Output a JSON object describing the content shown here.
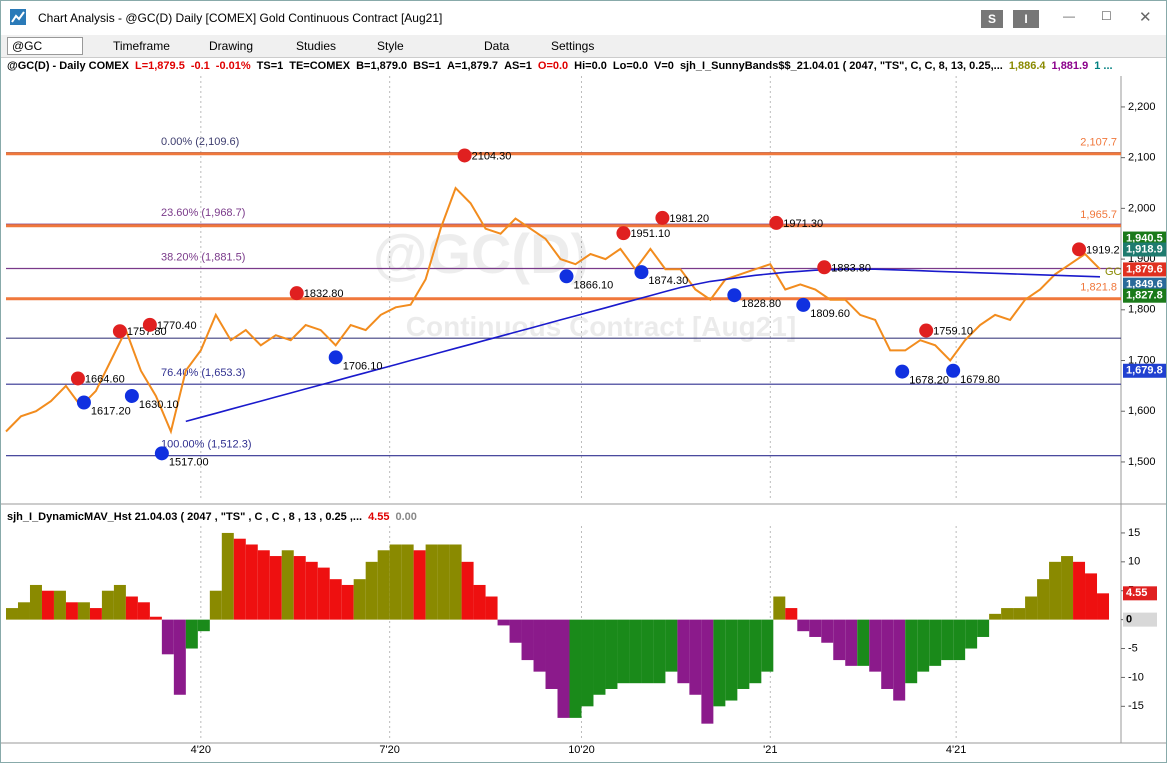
{
  "window": {
    "title": "Chart Analysis - @GC(D) Daily [COMEX] Gold Continuous Contract [Aug21]",
    "buttons": [
      "S",
      "I"
    ]
  },
  "toolbar": {
    "symbol": "@GC",
    "items": [
      "Timeframe",
      "Drawing",
      "Studies",
      "Style",
      "Data",
      "Settings"
    ]
  },
  "chart_data": [
    {
      "type": "line",
      "header": [
        {
          "text": "@GC(D) - Daily  COMEX",
          "color": "#000000"
        },
        {
          "text": "L=1,879.5",
          "color": "#e00000"
        },
        {
          "text": "-0.1",
          "color": "#e00000"
        },
        {
          "text": "-0.01%",
          "color": "#e00000"
        },
        {
          "text": "TS=1",
          "color": "#000000"
        },
        {
          "text": "TE=COMEX",
          "color": "#000000"
        },
        {
          "text": "B=1,879.0",
          "color": "#000000"
        },
        {
          "text": "BS=1",
          "color": "#000000"
        },
        {
          "text": "A=1,879.7",
          "color": "#000000"
        },
        {
          "text": "AS=1",
          "color": "#000000"
        },
        {
          "text": "O=0.0",
          "color": "#e00000"
        },
        {
          "text": "Hi=0.0",
          "color": "#000000"
        },
        {
          "text": "Lo=0.0",
          "color": "#000000"
        },
        {
          "text": "V=0",
          "color": "#000000"
        },
        {
          "text": "sjh_I_SunnyBands$$_21.04.01 ( 2047, \"TS\", C, C, 8, 13, 0.25,...",
          "color": "#000000"
        },
        {
          "text": "1,886.4",
          "color": "#8a8a00"
        },
        {
          "text": "1,881.9",
          "color": "#8b008b"
        },
        {
          "text": "1 ...",
          "color": "#008080"
        }
      ],
      "watermark": [
        "@GC(D)",
        "Continuous Contract [Aug21]"
      ],
      "symbol_tag": "GC",
      "xlim": [
        0,
        372
      ],
      "xticks": [
        {
          "value": 65,
          "label": "4'20"
        },
        {
          "value": 128,
          "label": "7'20"
        },
        {
          "value": 192,
          "label": "10'20"
        },
        {
          "value": 255,
          "label": "'21"
        },
        {
          "value": 317,
          "label": "4'21"
        }
      ],
      "ylim": [
        1423,
        2261
      ],
      "yticks": [
        {
          "value": 1500,
          "label": "1,500"
        },
        {
          "value": 1600,
          "label": "1,600"
        },
        {
          "value": 1700,
          "label": "1,700"
        },
        {
          "value": 1800,
          "label": "1,800"
        },
        {
          "value": 1900,
          "label": "1,900"
        },
        {
          "value": 2000,
          "label": "2,000"
        },
        {
          "value": 2100,
          "label": "2,100"
        },
        {
          "value": 2200,
          "label": "2,200"
        }
      ],
      "series": [
        {
          "color": "#f28c1e",
          "x": [
            0,
            5,
            10,
            15,
            20,
            25,
            30,
            35,
            40,
            45,
            50,
            55,
            60,
            65,
            70,
            75,
            80,
            85,
            90,
            95,
            100,
            105,
            110,
            115,
            120,
            125,
            130,
            135,
            140,
            145,
            150,
            155,
            160,
            165,
            170,
            175,
            180,
            185,
            190,
            195,
            200,
            205,
            210,
            215,
            220,
            225,
            230,
            235,
            240,
            245,
            250,
            255,
            260,
            265,
            270,
            275,
            280,
            285,
            290,
            295,
            300,
            305,
            310,
            315,
            320,
            325,
            330,
            335,
            340,
            345,
            350,
            355,
            360,
            365
          ],
          "values": [
            1560,
            1590,
            1600,
            1620,
            1650,
            1610,
            1640,
            1700,
            1760,
            1680,
            1630,
            1560,
            1680,
            1720,
            1790,
            1740,
            1760,
            1730,
            1750,
            1740,
            1770,
            1760,
            1730,
            1770,
            1760,
            1790,
            1805,
            1810,
            1860,
            1960,
            2040,
            2010,
            1960,
            1950,
            1980,
            1960,
            1940,
            1900,
            1890,
            1910,
            1900,
            1920,
            1880,
            1920,
            1880,
            1880,
            1840,
            1820,
            1860,
            1870,
            1880,
            1890,
            1840,
            1850,
            1840,
            1820,
            1820,
            1790,
            1780,
            1720,
            1720,
            1740,
            1730,
            1700,
            1740,
            1770,
            1790,
            1780,
            1820,
            1840,
            1870,
            1890,
            1910,
            1880
          ]
        },
        {
          "color": "#1a1acc",
          "x": [
            0,
            5,
            10,
            15,
            20,
            25,
            30,
            35,
            40,
            45,
            50,
            55,
            60,
            65,
            70,
            75,
            80,
            85,
            90,
            95,
            100,
            105,
            110,
            115,
            120,
            125,
            130,
            135,
            140,
            145,
            150,
            155,
            160,
            165,
            170,
            175,
            180,
            185,
            190,
            195,
            200,
            205,
            210,
            215,
            220,
            225,
            230,
            235,
            240,
            245,
            250,
            255,
            260,
            265,
            270,
            275,
            280,
            285,
            290,
            295,
            300,
            305,
            310,
            315,
            320,
            325,
            330,
            335,
            340,
            345,
            350,
            355,
            360,
            365
          ],
          "values": [
            null,
            null,
            null,
            null,
            null,
            null,
            null,
            null,
            null,
            null,
            null,
            null,
            1580,
            1588,
            1596,
            1604,
            1612,
            1620,
            1628,
            1636,
            1644,
            1652,
            1660,
            1668,
            1676,
            1684,
            1692,
            1700,
            1708,
            1716,
            1724,
            1732,
            1740,
            1748,
            1756,
            1764,
            1772,
            1780,
            1788,
            1796,
            1804,
            1812,
            1820,
            1828,
            1836,
            1844,
            1850,
            1856,
            1860,
            1864,
            1868,
            1871,
            1874,
            1876,
            1878,
            1879,
            1880,
            1880,
            1880,
            1879,
            1878,
            1877,
            1876,
            1875,
            1874,
            1873,
            1872,
            1871,
            1870,
            1869,
            1868,
            1867,
            1866,
            1865
          ]
        }
      ],
      "fib_levels": [
        {
          "value": 2109.6,
          "label": "0.00% (2,109.6)",
          "color": "#3c3c6e"
        },
        {
          "value": 1968.7,
          "label": "23.60% (1,968.7)",
          "color": "#7a3a8a"
        },
        {
          "value": 1881.5,
          "label": "38.20% (1,881.5)",
          "color": "#7a3a8a"
        },
        {
          "value": 1653.3,
          "label": "76.40% (1,653.3)",
          "color": "#303090"
        },
        {
          "value": 1512.3,
          "label": "100.00% (1,512.3)",
          "color": "#303090"
        }
      ],
      "level_lines": [
        {
          "value": 2107.7,
          "label": "2,107.7",
          "color": "#f0783c"
        },
        {
          "value": 1965.7,
          "label": "1,965.7",
          "color": "#f0783c"
        },
        {
          "value": 1821.8,
          "label": "1,821.8",
          "color": "#f0783c"
        },
        {
          "value": 1744,
          "color": "#404080"
        }
      ],
      "value_boxes": [
        {
          "value": 1940.5,
          "label": "1,940.5",
          "color": "#1a7a1a"
        },
        {
          "value": 1918.9,
          "label": "1,918.9",
          "color": "#1e7b6f"
        },
        {
          "value": 1879.6,
          "label": "1,879.6",
          "color": "#e03020"
        },
        {
          "value": 1849.6,
          "label": "1,849.6",
          "color": "#2a6a9a"
        },
        {
          "value": 1827.8,
          "label": "1,827.8",
          "color": "#1a7a1a"
        },
        {
          "value": 1679.8,
          "label": "1,679.8",
          "color": "#2040d0"
        }
      ],
      "swing_highs": {
        "color": "#e02020",
        "points": [
          {
            "x": 24,
            "value": 1664.6,
            "label": "1664.60"
          },
          {
            "x": 38,
            "value": 1757.8,
            "label": "1757.80"
          },
          {
            "x": 48,
            "value": 1770.4,
            "label": "1770.40"
          },
          {
            "x": 97,
            "value": 1832.8,
            "label": "1832.80"
          },
          {
            "x": 153,
            "value": 2104.3,
            "label": "2104.30"
          },
          {
            "x": 206,
            "value": 1951.1,
            "label": "1951.10"
          },
          {
            "x": 219,
            "value": 1981.2,
            "label": "1981.20"
          },
          {
            "x": 257,
            "value": 1971.3,
            "label": "1971.30"
          },
          {
            "x": 273,
            "value": 1883.8,
            "label": "1883.80"
          },
          {
            "x": 307,
            "value": 1759.1,
            "label": "1759.10"
          },
          {
            "x": 358,
            "value": 1919.2,
            "label": "1919.2"
          }
        ]
      },
      "swing_lows": {
        "color": "#1030e0",
        "points": [
          {
            "x": 26,
            "value": 1617.2,
            "label": "1617.20"
          },
          {
            "x": 42,
            "value": 1630.1,
            "label": "1630.10"
          },
          {
            "x": 52,
            "value": 1517,
            "label": "1517.00"
          },
          {
            "x": 110,
            "value": 1706.1,
            "label": "1706.10"
          },
          {
            "x": 187,
            "value": 1866.1,
            "label": "1866.10"
          },
          {
            "x": 212,
            "value": 1874.3,
            "label": "1874.30"
          },
          {
            "x": 243,
            "value": 1828.8,
            "label": "1828.80"
          },
          {
            "x": 266,
            "value": 1809.6,
            "label": "1809.60"
          },
          {
            "x": 299,
            "value": 1678.2,
            "label": "1678.20"
          },
          {
            "x": 316,
            "value": 1679.8,
            "label": "1679.80"
          }
        ]
      }
    },
    {
      "type": "bar",
      "header": [
        {
          "text": "sjh_I_DynamicMAV_Hst 21.04.03 ( 2047 , \"TS\" , C , C , 8 , 13 , 0.25 ,...",
          "color": "#000000"
        },
        {
          "text": "4.55",
          "color": "#e00000"
        },
        {
          "text": "0.00",
          "color": "#888888"
        }
      ],
      "xlim": [
        0,
        372
      ],
      "xticks": [
        {
          "value": 65,
          "label": "4'20"
        },
        {
          "value": 128,
          "label": "7'20"
        },
        {
          "value": 192,
          "label": "10'20"
        },
        {
          "value": 255,
          "label": "'21"
        },
        {
          "value": 317,
          "label": "4'21"
        }
      ],
      "ylim": [
        -21,
        16.2
      ],
      "yticks": [
        -15,
        -10,
        -5,
        0,
        5,
        10,
        15
      ],
      "colors": {
        "positive_rising": "#8a8a00",
        "positive_falling": "#ee1010",
        "negative_rising": "#1a8a1a",
        "negative_falling": "#8b1a8b"
      },
      "x": [
        0,
        4,
        8,
        12,
        16,
        20,
        24,
        28,
        32,
        36,
        40,
        44,
        48,
        52,
        56,
        60,
        64,
        68,
        72,
        76,
        80,
        84,
        88,
        92,
        96,
        100,
        104,
        108,
        112,
        116,
        120,
        124,
        128,
        132,
        136,
        140,
        144,
        148,
        152,
        156,
        160,
        164,
        168,
        172,
        176,
        180,
        184,
        188,
        192,
        196,
        200,
        204,
        208,
        212,
        216,
        220,
        224,
        228,
        232,
        236,
        240,
        244,
        248,
        252,
        256,
        260,
        264,
        268,
        272,
        276,
        280,
        284,
        288,
        292,
        296,
        300,
        304,
        308,
        312,
        316,
        320,
        324,
        328,
        332,
        336,
        340,
        344,
        348,
        352,
        356,
        360,
        364
      ],
      "values": [
        2,
        3,
        6,
        5,
        5,
        3,
        3,
        2,
        5,
        6,
        4,
        3,
        0.5,
        -6,
        -13,
        -5,
        -2,
        5,
        15,
        14,
        13,
        12,
        11,
        12,
        11,
        10,
        9,
        7,
        6,
        7,
        10,
        12,
        13,
        13,
        12,
        13,
        13,
        13,
        10,
        6,
        4,
        -1,
        -4,
        -7,
        -9,
        -12,
        -17,
        -17,
        -15,
        -13,
        -12,
        -11,
        -11,
        -11,
        -11,
        -9,
        -11,
        -13,
        -18,
        -15,
        -14,
        -12,
        -11,
        -9,
        4,
        2,
        -2,
        -3,
        -4,
        -7,
        -8,
        -8,
        -9,
        -12,
        -14,
        -11,
        -9,
        -8,
        -7,
        -7,
        -5,
        -3,
        1,
        2,
        2,
        4,
        7,
        10,
        11,
        10,
        8,
        4.55
      ],
      "value_boxes": [
        {
          "value": 4.55,
          "label": "4.55",
          "color": "#e02020"
        },
        {
          "value": 0,
          "label": "0",
          "color": "#d8d8d8"
        }
      ]
    }
  ]
}
